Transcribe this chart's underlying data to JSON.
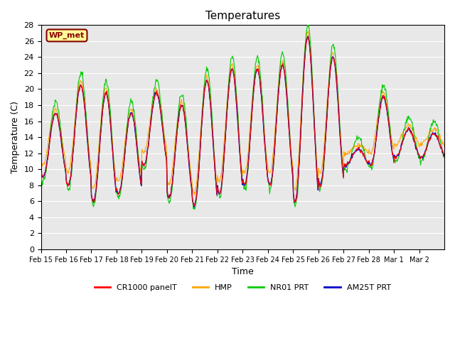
{
  "title": "Temperatures",
  "ylabel": "Temperature (C)",
  "xlabel": "Time",
  "ylim": [
    0,
    28
  ],
  "yticks": [
    0,
    2,
    4,
    6,
    8,
    10,
    12,
    14,
    16,
    18,
    20,
    22,
    24,
    26,
    28
  ],
  "bg_color": "#e8e8e8",
  "legend_label": "WP_met",
  "legend_bg": "#ffff99",
  "legend_border": "#8b0000",
  "series_colors": {
    "CR1000 panelT": "#ff0000",
    "HMP": "#ffa500",
    "NR01 PRT": "#00cc00",
    "AM25T PRT": "#0000cc"
  },
  "xtick_labels": [
    "Feb 15",
    "Feb 16",
    "Feb 17",
    "Feb 18",
    "Feb 19",
    "Feb 20",
    "Feb 21",
    "Feb 22",
    "Feb 23",
    "Feb 24",
    "Feb 25",
    "Feb 26",
    "Feb 27",
    "Feb 28",
    "Mar 1",
    "Mar 2"
  ],
  "daily_peaks": [
    17,
    20.5,
    19.5,
    17,
    19.5,
    18,
    21,
    22.5,
    22.5,
    23,
    26.5,
    24,
    12.5,
    19,
    15,
    14.5
  ],
  "daily_troughs": [
    9,
    8,
    6,
    7,
    10.5,
    6.5,
    5.5,
    7,
    8,
    8,
    6,
    8,
    10.5,
    10.5,
    11.5,
    11.5
  ],
  "npoints_per_day": 48
}
